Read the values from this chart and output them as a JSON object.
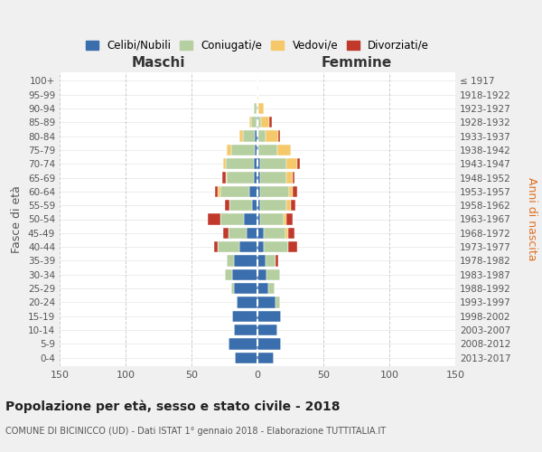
{
  "age_groups": [
    "0-4",
    "5-9",
    "10-14",
    "15-19",
    "20-24",
    "25-29",
    "30-34",
    "35-39",
    "40-44",
    "45-49",
    "50-54",
    "55-59",
    "60-64",
    "65-69",
    "70-74",
    "75-79",
    "80-84",
    "85-89",
    "90-94",
    "95-99",
    "100+"
  ],
  "birth_years": [
    "2013-2017",
    "2008-2012",
    "2003-2007",
    "1998-2002",
    "1993-1997",
    "1988-1992",
    "1983-1987",
    "1978-1982",
    "1973-1977",
    "1968-1972",
    "1963-1967",
    "1958-1962",
    "1953-1957",
    "1948-1952",
    "1943-1947",
    "1938-1942",
    "1933-1937",
    "1928-1932",
    "1923-1927",
    "1918-1922",
    "≤ 1917"
  ],
  "males": {
    "celibi": [
      17,
      22,
      18,
      19,
      16,
      18,
      19,
      18,
      14,
      8,
      10,
      4,
      6,
      3,
      3,
      2,
      2,
      1,
      1,
      0,
      0
    ],
    "coniugati": [
      0,
      0,
      0,
      0,
      0,
      2,
      6,
      5,
      16,
      14,
      18,
      17,
      22,
      20,
      21,
      18,
      9,
      4,
      2,
      0,
      0
    ],
    "vedovi": [
      0,
      0,
      0,
      0,
      0,
      0,
      0,
      0,
      0,
      0,
      0,
      0,
      2,
      1,
      2,
      3,
      3,
      1,
      0,
      0,
      0
    ],
    "divorziati": [
      0,
      0,
      0,
      0,
      0,
      0,
      0,
      0,
      3,
      4,
      10,
      4,
      2,
      3,
      0,
      0,
      0,
      0,
      0,
      0,
      0
    ]
  },
  "females": {
    "nubili": [
      12,
      18,
      15,
      18,
      14,
      8,
      7,
      6,
      5,
      5,
      2,
      2,
      2,
      2,
      2,
      1,
      1,
      1,
      0,
      0,
      0
    ],
    "coniugate": [
      0,
      0,
      0,
      0,
      3,
      5,
      10,
      8,
      18,
      16,
      18,
      20,
      22,
      20,
      20,
      14,
      5,
      2,
      1,
      0,
      0
    ],
    "vedove": [
      0,
      0,
      0,
      0,
      0,
      0,
      0,
      0,
      0,
      2,
      2,
      3,
      3,
      5,
      8,
      10,
      10,
      6,
      4,
      1,
      0
    ],
    "divorziate": [
      0,
      0,
      0,
      0,
      0,
      0,
      0,
      2,
      7,
      5,
      5,
      4,
      3,
      1,
      2,
      0,
      1,
      2,
      0,
      0,
      0
    ]
  },
  "colors": {
    "celibi": "#3a6eac",
    "coniugati": "#b5cfa0",
    "vedovi": "#f5c96a",
    "divorziati": "#c0392b"
  },
  "xlim": 150,
  "title": "Popolazione per età, sesso e stato civile - 2018",
  "subtitle": "COMUNE DI BICINICCO (UD) - Dati ISTAT 1° gennaio 2018 - Elaborazione TUTTITALIA.IT",
  "xlabel_left": "Maschi",
  "xlabel_right": "Femmine",
  "ylabel_left": "Fasce di età",
  "ylabel_right": "Anni di nascita",
  "bg_color": "#f0f0f0",
  "plot_bg_color": "#ffffff",
  "legend_labels": [
    "Celibi/Nubili",
    "Coniugati/e",
    "Vedovi/e",
    "Divorziati/e"
  ]
}
